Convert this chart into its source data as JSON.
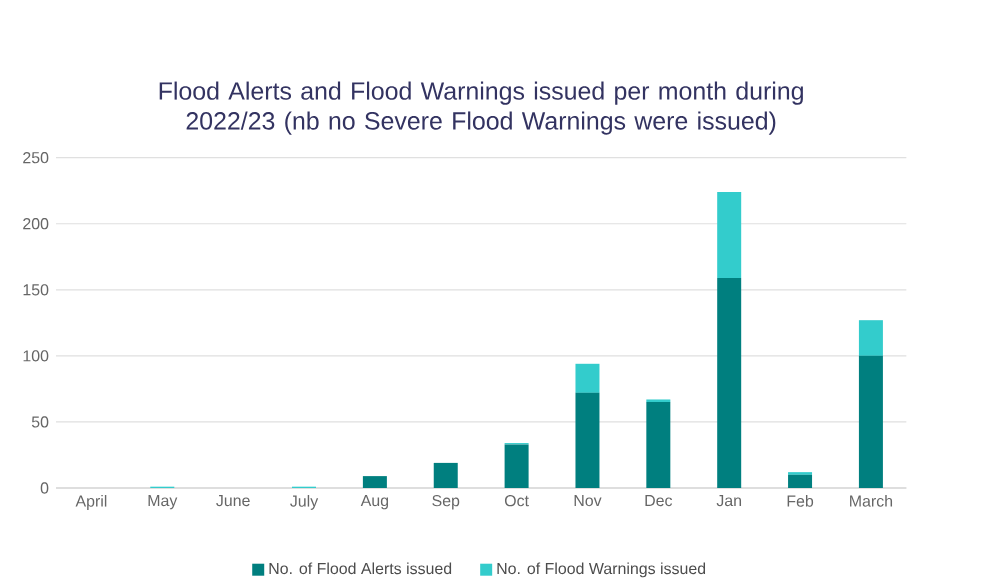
{
  "chart_data": {
    "type": "bar",
    "stacked": true,
    "title": "Flood Alerts and Flood Warnings issued per month during 2022/23 (nb no Severe Flood Warnings were issued)",
    "categories": [
      "April",
      "May",
      "June",
      "July",
      "Aug",
      "Sep",
      "Oct",
      "Nov",
      "Dec",
      "Jan",
      "Feb",
      "March"
    ],
    "series": [
      {
        "name": "No. of Flood Alerts issued",
        "color": "#007f7f",
        "values": [
          0,
          0,
          0,
          0,
          9,
          19,
          33,
          72,
          65,
          159,
          10,
          100
        ]
      },
      {
        "name": "No. of Flood Warnings issued",
        "color": "#33cccc",
        "values": [
          0,
          1,
          0,
          1,
          0,
          0,
          1,
          22,
          2,
          65,
          2,
          27
        ]
      }
    ],
    "ylim": [
      0,
      250
    ],
    "yticks": [
      0,
      50,
      100,
      150,
      200,
      250
    ],
    "grid": "y",
    "legend": "bottom"
  }
}
